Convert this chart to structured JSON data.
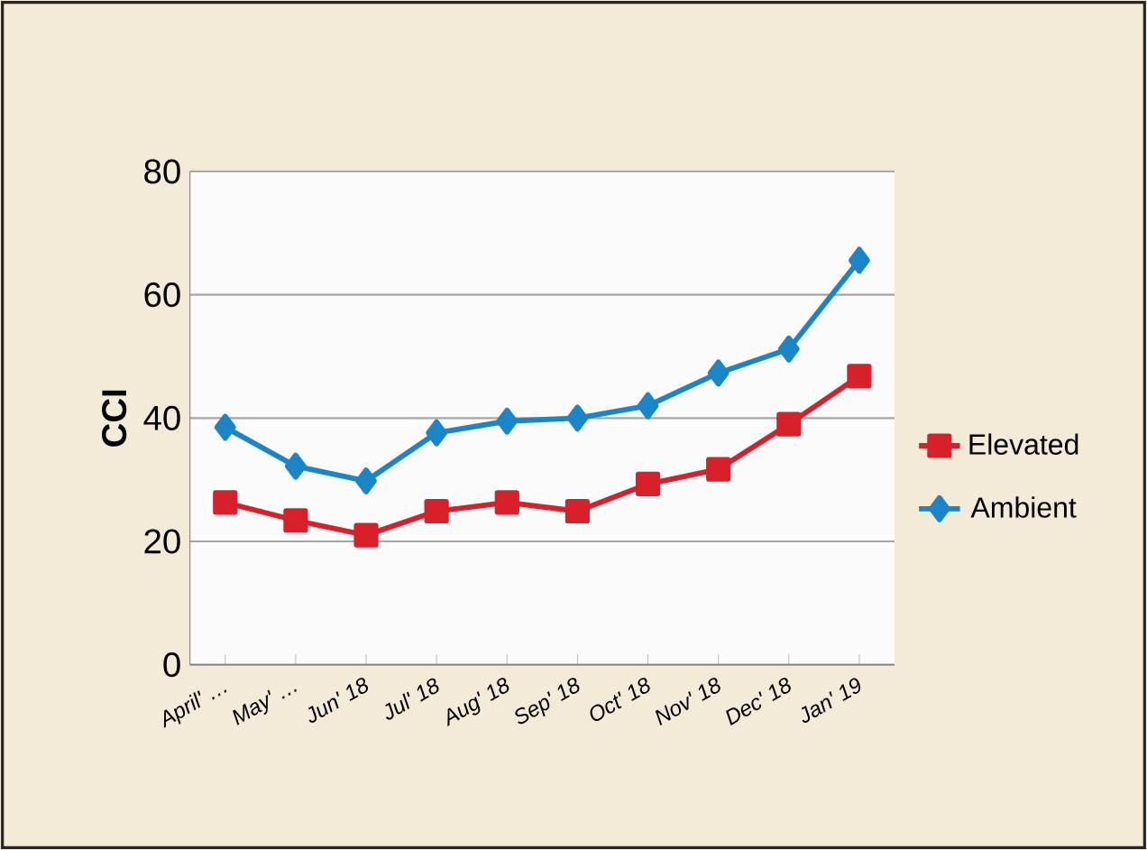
{
  "chart_data": {
    "type": "line",
    "ylabel": "CCI",
    "categories": [
      "April' …",
      "May' …",
      "Jun' 18",
      "Jul' 18",
      "Aug' 18",
      "Sep' 18",
      "Oct' 18",
      "Nov' 18",
      "Dec' 18",
      "Jan' 19"
    ],
    "series": [
      {
        "name": "Elevated",
        "color": "#d7202a",
        "marker": "square",
        "values": [
          26.3,
          23.4,
          21,
          24.9,
          26.3,
          24.9,
          29.3,
          31.7,
          39,
          46.8
        ]
      },
      {
        "name": "Ambient",
        "color": "#1a86c8",
        "marker": "diamond",
        "values": [
          38.5,
          32.2,
          29.8,
          37.6,
          39.5,
          40,
          42,
          47.3,
          51.2,
          65.6
        ]
      }
    ],
    "ylim": [
      0,
      80
    ],
    "yticks": [
      0,
      20,
      40,
      60,
      80
    ],
    "grid": "y",
    "legend": "right"
  }
}
